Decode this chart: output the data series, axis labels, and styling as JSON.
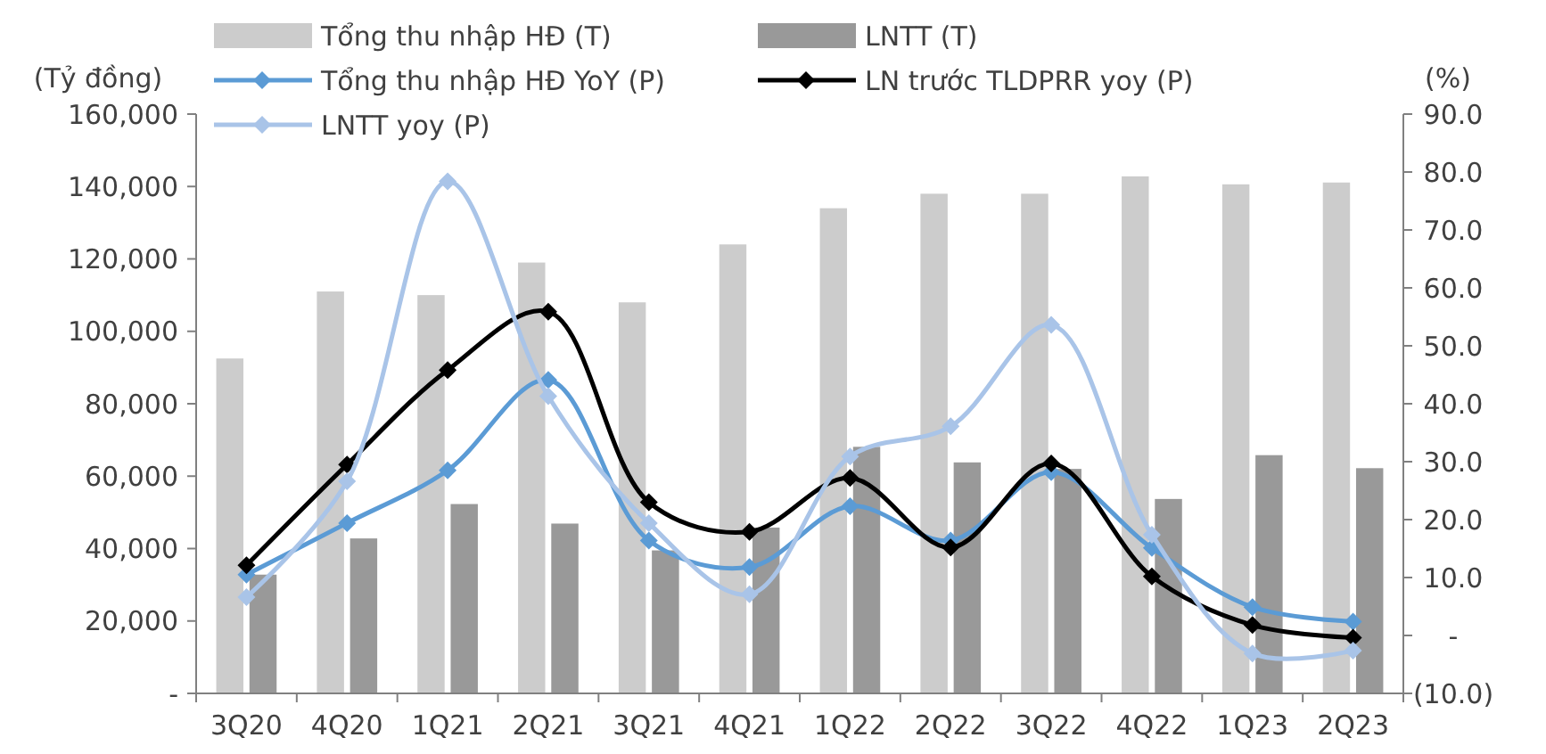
{
  "chart_data": {
    "type": "bar",
    "ylabel": "(Tỷ đồng)",
    "y2label": "(%)",
    "categories": [
      "3Q20",
      "4Q20",
      "1Q21",
      "2Q21",
      "3Q21",
      "4Q21",
      "1Q22",
      "2Q22",
      "3Q22",
      "4Q22",
      "1Q23",
      "2Q23"
    ],
    "series": [
      {
        "name": "Tổng thu nhập HĐ (T)",
        "color": "#cccccc",
        "values": [
          92500,
          111000,
          110000,
          119000,
          108000,
          124000,
          134000,
          138000,
          138000,
          142800,
          140600,
          141100
        ]
      },
      {
        "name": "LNTT (T)",
        "color": "#999999",
        "values": [
          32800,
          42800,
          52300,
          46900,
          39500,
          45800,
          68100,
          63800,
          62000,
          53700,
          65800,
          62200
        ]
      },
      {
        "name": "Tổng thu nhập HĐ YoY (P)",
        "type": "line",
        "axis": "y2",
        "color": "#5b9bd5",
        "values": [
          10.5,
          19.4,
          28.5,
          44.1,
          16.4,
          11.8,
          22.3,
          16.4,
          28.2,
          15.1,
          4.9,
          2.4
        ]
      },
      {
        "name": "LN trước TLDPRR yoy (P)",
        "type": "line",
        "axis": "y2",
        "color": "#000000",
        "values": [
          12.1,
          29.5,
          45.8,
          55.9,
          23.0,
          17.9,
          27.2,
          15.2,
          29.7,
          10.2,
          1.8,
          -0.4
        ]
      },
      {
        "name": "LNTT yoy (P)",
        "type": "line",
        "axis": "y2",
        "color": "#a9c4e8",
        "values": [
          6.6,
          26.6,
          78.4,
          41.3,
          19.4,
          7.1,
          30.9,
          36.1,
          53.6,
          17.4,
          -3.1,
          -2.6
        ]
      }
    ],
    "ylim": [
      0,
      160000
    ],
    "yticks": [
      {
        "value": 0,
        "label": "-"
      },
      {
        "value": 20000,
        "label": "20,000"
      },
      {
        "value": 40000,
        "label": "40,000"
      },
      {
        "value": 60000,
        "label": "60,000"
      },
      {
        "value": 80000,
        "label": "80,000"
      },
      {
        "value": 100000,
        "label": "100,000"
      },
      {
        "value": 120000,
        "label": "120,000"
      },
      {
        "value": 140000,
        "label": "140,000"
      },
      {
        "value": 160000,
        "label": "160,000"
      }
    ],
    "y2lim": [
      -10,
      90
    ],
    "y2ticks": [
      {
        "value": -10,
        "label": "(10.0)"
      },
      {
        "value": 0,
        "label": "-"
      },
      {
        "value": 10,
        "label": "10.0"
      },
      {
        "value": 20,
        "label": "20.0"
      },
      {
        "value": 30,
        "label": "30.0"
      },
      {
        "value": 40,
        "label": "40.0"
      },
      {
        "value": 50,
        "label": "50.0"
      },
      {
        "value": 60,
        "label": "60.0"
      },
      {
        "value": 70,
        "label": "70.0"
      },
      {
        "value": 80,
        "label": "80.0"
      },
      {
        "value": 90,
        "label": "90.0"
      }
    ],
    "legend": "top",
    "marker": "diamond",
    "line_style": "solid",
    "grid": false
  }
}
